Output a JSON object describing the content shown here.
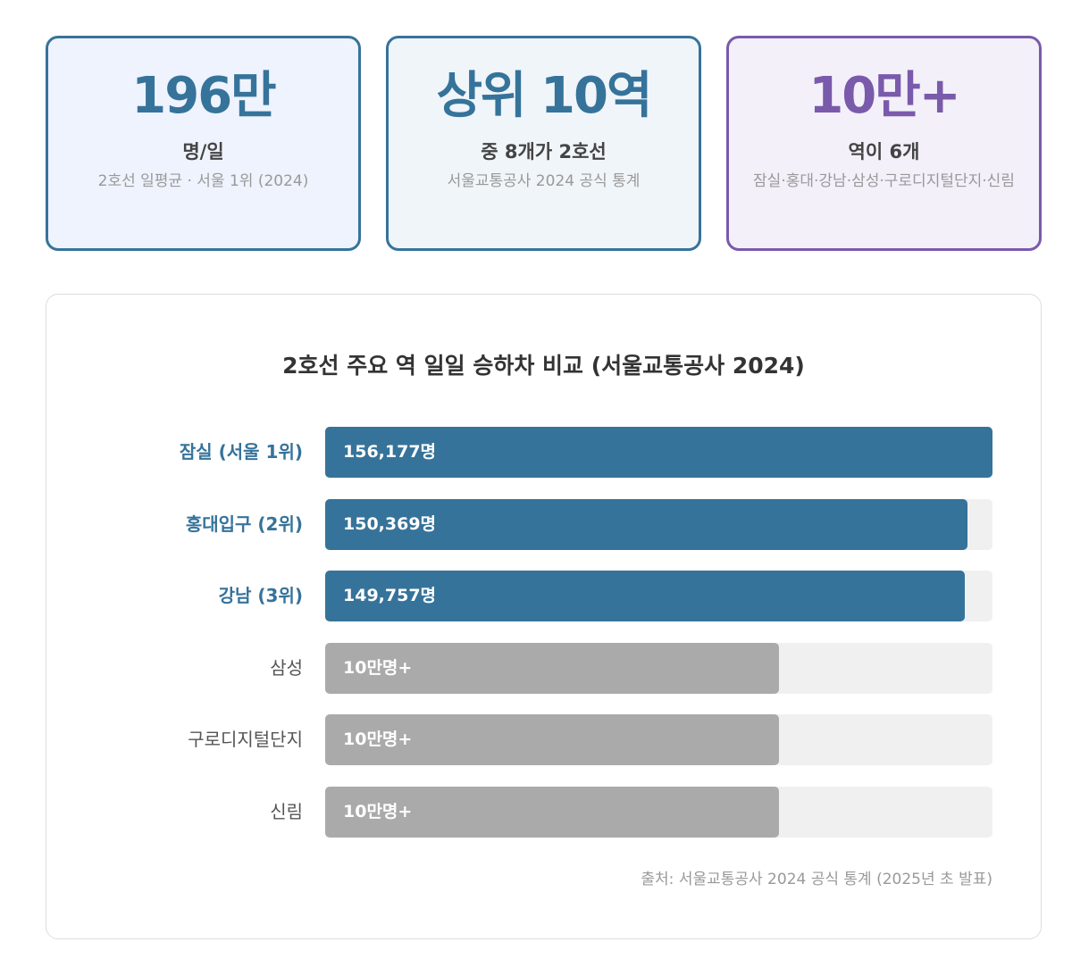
{
  "cards": [
    {
      "big": "196만",
      "sub": "명/일",
      "note": "2호선 일평균 · 서울 1위 (2024)"
    },
    {
      "big": "상위 10역",
      "sub": "중 8개가 2호선",
      "note": "서울교통공사 2024 공식 통계"
    },
    {
      "big": "10만+",
      "sub": "역이 6개",
      "note": "잠실·홍대·강남·삼성·구로디지털단지·신림"
    }
  ],
  "colors": {
    "primary": "#36739a",
    "purple": "#7a5aaa",
    "gray": "#aaaaaa",
    "track": "#f0f0f0"
  },
  "chart_data": {
    "type": "bar",
    "orientation": "horizontal",
    "title": "2호선 주요 역 일일 승하차 비교 (서울교통공사 2024)",
    "categories": [
      "잠실 (서울 1위)",
      "홍대입구 (2위)",
      "강남 (3위)",
      "삼성",
      "구로디지털단지",
      "신림"
    ],
    "values": [
      156177,
      150369,
      149757,
      100000,
      100000,
      100000
    ],
    "labels": [
      "156,177명",
      "150,369명",
      "149,757명",
      "10만명+",
      "10만명+",
      "10만명+"
    ],
    "highlight": [
      true,
      true,
      true,
      false,
      false,
      false
    ],
    "xlim": [
      0,
      156177
    ],
    "source": "출처: 서울교통공사 2024 공식 통계 (2025년 초 발표)"
  }
}
